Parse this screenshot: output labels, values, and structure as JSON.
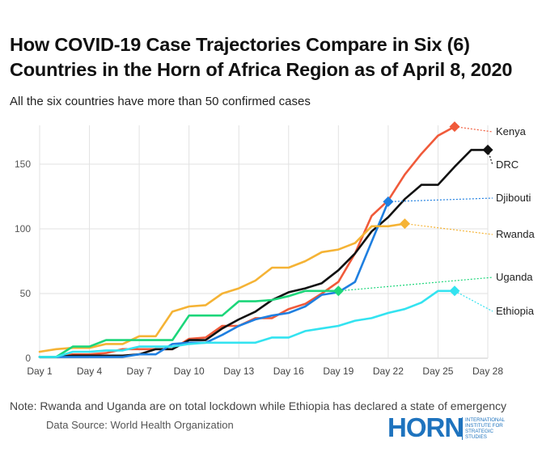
{
  "header": {
    "title": "How COVID-19 Case Trajectories Compare in Six (6) Countries in the Horn of Africa Region as of April 8, 2020",
    "subtitle": "All the six countries have more than 50 confirmed cases"
  },
  "footer": {
    "note": "Note: Rwanda and Uganda are on total lockdown while Ethiopia has declared a state of emergency",
    "source": "Data Source: World Health Organization"
  },
  "logo": {
    "word": "HORN",
    "tagline": "INTERNATIONAL INSTITUTE FOR STRATEGIC STUDIES"
  },
  "chart_data": {
    "type": "line",
    "title": "How COVID-19 Case Trajectories Compare in Six (6) Countries in the Horn of Africa Region as of April 8, 2020",
    "subtitle": "All the six countries have more than 50 confirmed cases",
    "xlabel": "",
    "ylabel": "",
    "x_tick_labels": [
      "Day 1",
      "Day 4",
      "Day 7",
      "Day 10",
      "Day 13",
      "Day 16",
      "Day 19",
      "Day 22",
      "Day 25",
      "Day 28"
    ],
    "x_tick_values": [
      1,
      4,
      7,
      10,
      13,
      16,
      19,
      22,
      25,
      28
    ],
    "y_ticks": [
      0,
      50,
      100,
      150
    ],
    "xlim": [
      1,
      28
    ],
    "ylim": [
      0,
      180
    ],
    "grid": true,
    "legend": "direct labels at right",
    "series": [
      {
        "name": "Kenya",
        "color": "#f05a3a",
        "x": [
          1,
          2,
          3,
          4,
          5,
          6,
          7,
          8,
          9,
          10,
          11,
          12,
          13,
          14,
          15,
          16,
          17,
          18,
          19,
          20,
          21,
          22,
          23,
          24,
          25,
          26
        ],
        "y": [
          1,
          1,
          3,
          3,
          4,
          7,
          7,
          7,
          7,
          15,
          16,
          25,
          25,
          31,
          31,
          38,
          42,
          50,
          59,
          81,
          110,
          122,
          142,
          158,
          172,
          179
        ]
      },
      {
        "name": "DRC",
        "color": "#111111",
        "x": [
          1,
          2,
          3,
          4,
          5,
          6,
          7,
          8,
          9,
          10,
          11,
          12,
          13,
          14,
          15,
          16,
          17,
          18,
          19,
          20,
          21,
          22,
          23,
          24,
          25,
          26,
          27,
          28
        ],
        "y": [
          1,
          1,
          2,
          2,
          2,
          2,
          3,
          7,
          7,
          14,
          14,
          23,
          30,
          36,
          45,
          51,
          54,
          58,
          68,
          81,
          98,
          109,
          123,
          134,
          134,
          148,
          161,
          161
        ]
      },
      {
        "name": "Djibouti",
        "color": "#1f7fe0",
        "x": [
          1,
          2,
          3,
          4,
          5,
          6,
          7,
          8,
          9,
          10,
          11,
          12,
          13,
          14,
          15,
          16,
          17,
          18,
          19,
          20,
          21,
          22
        ],
        "y": [
          1,
          1,
          1,
          1,
          1,
          1,
          3,
          3,
          11,
          12,
          12,
          18,
          25,
          30,
          33,
          35,
          40,
          49,
          51,
          59,
          90,
          121
        ]
      },
      {
        "name": "Rwanda",
        "color": "#f5b335",
        "x": [
          1,
          2,
          3,
          4,
          5,
          6,
          7,
          8,
          9,
          10,
          11,
          12,
          13,
          14,
          15,
          16,
          17,
          18,
          19,
          20,
          21,
          22,
          23
        ],
        "y": [
          5,
          7,
          8,
          8,
          11,
          11,
          17,
          17,
          36,
          40,
          41,
          50,
          54,
          60,
          70,
          70,
          75,
          82,
          84,
          89,
          102,
          102,
          104
        ]
      },
      {
        "name": "Uganda",
        "color": "#1cd67a",
        "x": [
          1,
          2,
          3,
          4,
          5,
          6,
          7,
          8,
          9,
          10,
          11,
          12,
          13,
          14,
          15,
          16,
          17,
          18,
          19
        ],
        "y": [
          1,
          1,
          9,
          9,
          14,
          14,
          14,
          14,
          14,
          33,
          33,
          33,
          44,
          44,
          45,
          48,
          52,
          52,
          52
        ]
      },
      {
        "name": "Ethiopia",
        "color": "#33e3f0",
        "x": [
          1,
          2,
          3,
          4,
          5,
          6,
          7,
          8,
          9,
          10,
          11,
          12,
          13,
          14,
          15,
          16,
          17,
          18,
          19,
          20,
          21,
          22,
          23,
          24,
          25,
          26
        ],
        "y": [
          1,
          1,
          5,
          5,
          6,
          6,
          9,
          9,
          9,
          11,
          12,
          12,
          12,
          12,
          16,
          16,
          21,
          23,
          25,
          29,
          31,
          35,
          38,
          43,
          52,
          52
        ]
      }
    ]
  }
}
